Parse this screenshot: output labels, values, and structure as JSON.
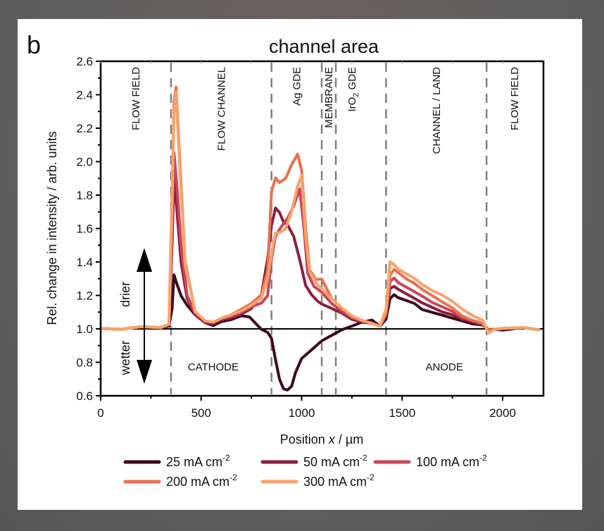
{
  "chart_data": {
    "type": "line",
    "panel_label": "b",
    "title": "channel area",
    "xlabel": "Position x / µm",
    "xlabel_parts": [
      "Position ",
      "x",
      " / µm"
    ],
    "ylabel": "Rel. change in intensity / arb. units",
    "xlim": [
      0,
      2200
    ],
    "ylim": [
      0.6,
      2.6
    ],
    "xticks": [
      0,
      500,
      1000,
      1500,
      2000
    ],
    "xtick_labels": [
      "0",
      "500",
      "1000",
      "1500",
      "2000"
    ],
    "xminor": [
      250,
      750,
      1250,
      1750
    ],
    "yticks": [
      0.6,
      0.8,
      1.0,
      1.2,
      1.4,
      1.6,
      1.8,
      2.0,
      2.2,
      2.4,
      2.6
    ],
    "ytick_labels": [
      "0.6",
      "0.8",
      "1.0",
      "1.2",
      "1.4",
      "1.6",
      "1.8",
      "2.0",
      "2.2",
      "2.4",
      "2.6"
    ],
    "reference_line": 1.0,
    "grid": false,
    "region_boundaries": [
      350,
      850,
      1100,
      1170,
      1420,
      1920
    ],
    "region_labels_top": [
      {
        "text": "FLOW FIELD",
        "x": 175
      },
      {
        "text": "FLOW CHANNEL",
        "x": 600
      },
      {
        "text": "Ag GDE",
        "x": 975
      },
      {
        "text": "MEMBRANE",
        "x": 1135
      },
      {
        "text": "IrO",
        "sub": "2",
        "rest": " GDE",
        "x": 1250
      },
      {
        "text": "CHANNEL / LAND",
        "x": 1670
      },
      {
        "text": "FLOW FIELD",
        "x": 2060
      }
    ],
    "region_labels_bottom": [
      {
        "text": "CATHODE",
        "x": 560
      },
      {
        "text": "ANODE",
        "x": 1710
      }
    ],
    "annotations": {
      "drier": "drier",
      "wetter": "wetter"
    },
    "legend_position": "bottom",
    "series": [
      {
        "name": "25 mA cm-2",
        "label": "25 mA cm",
        "sup": "-2",
        "color": "#3d0a1c",
        "x": [
          0,
          100,
          200,
          300,
          340,
          355,
          365,
          380,
          400,
          430,
          470,
          520,
          560,
          600,
          650,
          700,
          740,
          770,
          800,
          830,
          850,
          870,
          890,
          910,
          930,
          950,
          970,
          1000,
          1050,
          1100,
          1150,
          1200,
          1250,
          1300,
          1350,
          1390,
          1420,
          1440,
          1460,
          1480,
          1520,
          1560,
          1600,
          1650,
          1700,
          1750,
          1800,
          1850,
          1900,
          1930,
          1960,
          2000,
          2100,
          2180
        ],
        "y": [
          1.01,
          1.0,
          1.01,
          1.0,
          1.02,
          1.12,
          1.32,
          1.27,
          1.2,
          1.14,
          1.08,
          1.04,
          1.02,
          1.04,
          1.06,
          1.08,
          1.07,
          1.03,
          1.0,
          0.98,
          0.94,
          0.82,
          0.7,
          0.64,
          0.63,
          0.66,
          0.74,
          0.82,
          0.88,
          0.93,
          0.96,
          0.99,
          1.02,
          1.04,
          1.05,
          1.02,
          1.06,
          1.18,
          1.2,
          1.19,
          1.17,
          1.15,
          1.12,
          1.1,
          1.08,
          1.06,
          1.05,
          1.03,
          1.02,
          1.0,
          1.0,
          0.99,
          1.0,
          1.0
        ]
      },
      {
        "name": "50 mA cm-2",
        "label": "50 mA cm",
        "sup": "-2",
        "color": "#8c1f3d",
        "x": [
          0,
          100,
          200,
          300,
          340,
          355,
          365,
          380,
          400,
          430,
          470,
          520,
          560,
          600,
          650,
          700,
          750,
          800,
          830,
          850,
          870,
          890,
          910,
          930,
          960,
          990,
          1020,
          1050,
          1080,
          1100,
          1150,
          1200,
          1250,
          1300,
          1350,
          1390,
          1420,
          1440,
          1460,
          1480,
          1520,
          1560,
          1600,
          1650,
          1700,
          1750,
          1800,
          1850,
          1900,
          1930,
          1960,
          2000,
          2100,
          2180
        ],
        "y": [
          1.01,
          1.0,
          1.01,
          1.0,
          1.03,
          1.5,
          1.9,
          1.7,
          1.4,
          1.18,
          1.08,
          1.04,
          1.03,
          1.05,
          1.07,
          1.09,
          1.12,
          1.2,
          1.42,
          1.62,
          1.72,
          1.7,
          1.64,
          1.62,
          1.55,
          1.42,
          1.26,
          1.2,
          1.17,
          1.15,
          1.12,
          1.09,
          1.06,
          1.04,
          1.03,
          1.02,
          1.08,
          1.24,
          1.25,
          1.24,
          1.21,
          1.18,
          1.16,
          1.13,
          1.1,
          1.08,
          1.06,
          1.04,
          1.02,
          1.0,
          1.0,
          1.0,
          1.0,
          1.0
        ]
      },
      {
        "name": "100 mA cm-2",
        "label": "100 mA cm",
        "sup": "-2",
        "color": "#c9475a",
        "x": [
          0,
          100,
          200,
          300,
          340,
          355,
          365,
          380,
          400,
          430,
          470,
          520,
          560,
          600,
          650,
          700,
          750,
          800,
          830,
          850,
          870,
          890,
          910,
          930,
          960,
          990,
          1010,
          1030,
          1060,
          1100,
          1150,
          1200,
          1250,
          1300,
          1350,
          1390,
          1420,
          1440,
          1460,
          1480,
          1520,
          1560,
          1600,
          1650,
          1700,
          1750,
          1800,
          1850,
          1900,
          1930,
          1960,
          2000,
          2100,
          2180
        ],
        "y": [
          1.01,
          1.0,
          1.01,
          1.0,
          1.03,
          1.6,
          2.05,
          1.85,
          1.5,
          1.2,
          1.09,
          1.05,
          1.04,
          1.06,
          1.08,
          1.1,
          1.13,
          1.15,
          1.2,
          1.42,
          1.55,
          1.6,
          1.63,
          1.66,
          1.73,
          1.84,
          1.62,
          1.33,
          1.26,
          1.22,
          1.15,
          1.1,
          1.07,
          1.05,
          1.03,
          1.02,
          1.09,
          1.28,
          1.3,
          1.28,
          1.25,
          1.22,
          1.2,
          1.16,
          1.13,
          1.1,
          1.07,
          1.05,
          1.03,
          1.0,
          1.0,
          1.0,
          1.0,
          1.0
        ]
      },
      {
        "name": "200 mA cm-2",
        "label": "200 mA cm",
        "sup": "-2",
        "color": "#e8714f",
        "x": [
          0,
          100,
          200,
          300,
          340,
          355,
          365,
          375,
          390,
          420,
          470,
          520,
          560,
          600,
          650,
          700,
          750,
          800,
          830,
          850,
          870,
          890,
          920,
          950,
          980,
          1000,
          1020,
          1040,
          1070,
          1100,
          1150,
          1200,
          1250,
          1300,
          1350,
          1390,
          1420,
          1440,
          1460,
          1480,
          1520,
          1560,
          1600,
          1650,
          1700,
          1750,
          1800,
          1850,
          1900,
          1930,
          1960,
          2000,
          2100,
          2180
        ],
        "y": [
          1.01,
          1.0,
          1.01,
          1.0,
          1.03,
          1.8,
          2.35,
          2.45,
          2.1,
          1.4,
          1.1,
          1.05,
          1.04,
          1.06,
          1.09,
          1.12,
          1.15,
          1.2,
          1.35,
          1.82,
          1.9,
          1.88,
          1.9,
          1.98,
          2.04,
          1.95,
          1.6,
          1.35,
          1.3,
          1.3,
          1.18,
          1.12,
          1.08,
          1.05,
          1.03,
          1.02,
          1.1,
          1.32,
          1.35,
          1.34,
          1.3,
          1.27,
          1.24,
          1.2,
          1.16,
          1.12,
          1.08,
          1.05,
          1.03,
          0.99,
          1.0,
          1.0,
          1.0,
          1.0
        ]
      },
      {
        "name": "300 mA cm-2",
        "label": "300 mA cm",
        "sup": "-2",
        "color": "#f9a36a",
        "x": [
          0,
          100,
          200,
          300,
          340,
          355,
          365,
          375,
          390,
          420,
          470,
          520,
          560,
          600,
          650,
          700,
          750,
          800,
          830,
          850,
          870,
          890,
          920,
          950,
          980,
          1000,
          1020,
          1040,
          1070,
          1100,
          1150,
          1200,
          1250,
          1300,
          1350,
          1390,
          1420,
          1440,
          1460,
          1480,
          1520,
          1560,
          1600,
          1650,
          1700,
          1750,
          1800,
          1850,
          1900,
          1930,
          1960,
          2000,
          2100,
          2180
        ],
        "y": [
          1.01,
          1.0,
          1.01,
          1.0,
          1.03,
          1.75,
          2.3,
          2.42,
          2.05,
          1.38,
          1.1,
          1.05,
          1.04,
          1.06,
          1.09,
          1.11,
          1.14,
          1.18,
          1.3,
          1.45,
          1.57,
          1.58,
          1.6,
          1.7,
          1.85,
          1.92,
          1.55,
          1.34,
          1.28,
          1.24,
          1.18,
          1.12,
          1.08,
          1.05,
          1.03,
          1.02,
          1.12,
          1.4,
          1.38,
          1.36,
          1.33,
          1.3,
          1.27,
          1.23,
          1.2,
          1.16,
          1.12,
          1.08,
          1.05,
          0.98,
          1.0,
          1.0,
          1.0,
          1.0
        ]
      }
    ]
  }
}
